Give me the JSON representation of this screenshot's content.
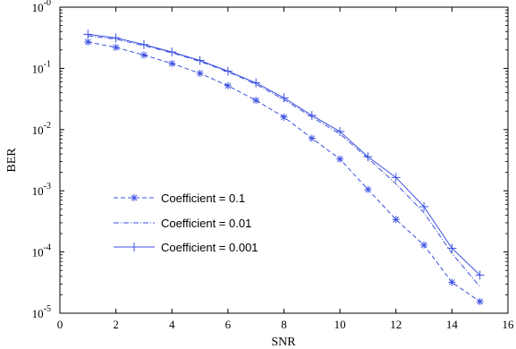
{
  "chart_data": {
    "type": "line",
    "xlabel": "SNR",
    "ylabel": "BER",
    "xlim": [
      0,
      16
    ],
    "ylim": [
      1e-05,
      1
    ],
    "yscale": "log",
    "grid": false,
    "legend_position": "lower-left",
    "xticks": [
      "0",
      "2",
      "4",
      "6",
      "8",
      "10",
      "12",
      "14",
      "16"
    ],
    "yticks": [
      {
        "base": "10",
        "exp": "-0"
      },
      {
        "base": "10",
        "exp": "-1"
      },
      {
        "base": "10",
        "exp": "-2"
      },
      {
        "base": "10",
        "exp": "-3"
      },
      {
        "base": "10",
        "exp": "-4"
      },
      {
        "base": "10",
        "exp": "-5"
      }
    ],
    "x": [
      1,
      2,
      3,
      4,
      5,
      6,
      7,
      8,
      9,
      10,
      11,
      12,
      13,
      14,
      15
    ],
    "series": [
      {
        "name": "Coefficient = 0.1",
        "color": "#3b4fe0",
        "dash": "dashed",
        "marker": "star",
        "values": [
          0.27,
          0.22,
          0.165,
          0.12,
          0.083,
          0.052,
          0.03,
          0.016,
          0.0072,
          0.0033,
          0.00105,
          0.00034,
          0.00013,
          3.2e-05,
          1.55e-05
        ]
      },
      {
        "name": "Coefficient = 0.01",
        "color": "#3b4fe0",
        "dash": "dashdot",
        "marker": "none",
        "values": [
          0.34,
          0.3,
          0.235,
          0.18,
          0.13,
          0.088,
          0.055,
          0.031,
          0.016,
          0.0085,
          0.0034,
          0.0013,
          0.00044,
          9.5e-05,
          2.7e-05
        ]
      },
      {
        "name": "Coefficient = 0.001",
        "color": "#3b4fe0",
        "dash": "solid",
        "marker": "plus",
        "values": [
          0.36,
          0.315,
          0.245,
          0.185,
          0.135,
          0.09,
          0.058,
          0.033,
          0.017,
          0.0093,
          0.0036,
          0.00165,
          0.00055,
          0.000115,
          4.2e-05
        ]
      }
    ]
  }
}
